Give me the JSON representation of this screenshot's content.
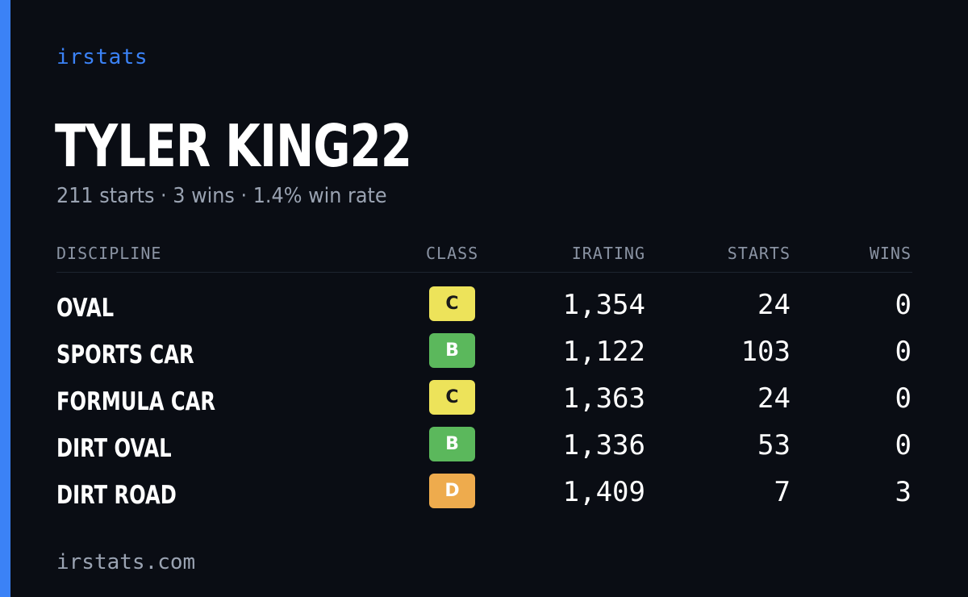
{
  "brand": "irstats",
  "driver": {
    "name": "TYLER KING22",
    "summary": "211 starts · 3 wins · 1.4% win rate"
  },
  "table": {
    "headers": {
      "discipline": "DISCIPLINE",
      "class": "CLASS",
      "irating": "IRATING",
      "starts": "STARTS",
      "wins": "WINS"
    },
    "rows": [
      {
        "discipline": "OVAL",
        "class": "C",
        "irating": "1,354",
        "starts": "24",
        "wins": "0"
      },
      {
        "discipline": "SPORTS CAR",
        "class": "B",
        "irating": "1,122",
        "starts": "103",
        "wins": "0"
      },
      {
        "discipline": "FORMULA CAR",
        "class": "C",
        "irating": "1,363",
        "starts": "24",
        "wins": "0"
      },
      {
        "discipline": "DIRT OVAL",
        "class": "B",
        "irating": "1,336",
        "starts": "53",
        "wins": "0"
      },
      {
        "discipline": "DIRT ROAD",
        "class": "D",
        "irating": "1,409",
        "starts": "7",
        "wins": "3"
      }
    ]
  },
  "footer": "irstats.com",
  "colors": {
    "accent": "#3b82f6",
    "class_C": "#ede35a",
    "class_B": "#5bb85c",
    "class_D": "#eeab4d"
  }
}
